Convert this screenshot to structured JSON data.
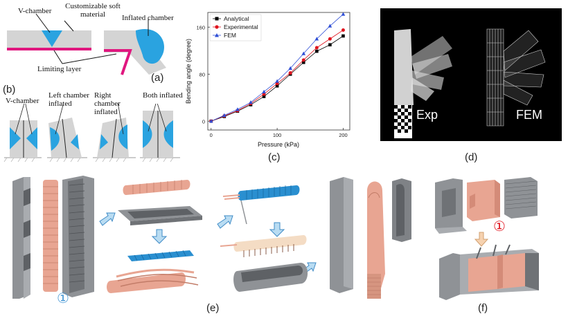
{
  "panel_a": {
    "v_chamber": "V-chamber",
    "soft_material": "Customizable soft material",
    "inflated_chamber": "Inflated chamber",
    "limiting_layer": "Limiting layer",
    "label": "(a)"
  },
  "panel_b": {
    "label": "(b)",
    "v_chamber": "V-chamber",
    "left_inflated": "Left chamber inflated",
    "right_inflated": "Right chamber inflated",
    "both_inflated": "Both inflated"
  },
  "panel_c": {
    "label": "(c)"
  },
  "panel_d": {
    "label": "(d)",
    "exp": "Exp",
    "fem": "FEM"
  },
  "panel_e": {
    "label": "(e)",
    "marker": "①"
  },
  "panel_f": {
    "label": "(f)",
    "marker": "①"
  },
  "colors": {
    "chamber_blue": "#2aa3e0",
    "limiting_pink": "#e0177f",
    "part_pink": "#e8a592",
    "part_gray": "#8f9296"
  },
  "chart_data": {
    "type": "line",
    "xlabel": "Pressure (kPa)",
    "ylabel": "Bending angle (degree)",
    "xlim": [
      -5,
      210
    ],
    "ylim": [
      -15,
      185
    ],
    "xticks": [
      0,
      100,
      200
    ],
    "yticks": [
      0,
      80,
      160
    ],
    "legend_position": "top-left",
    "series": [
      {
        "name": "Analytical",
        "color": "#000000",
        "marker": "square",
        "x": [
          0,
          20,
          40,
          60,
          80,
          100,
          120,
          140,
          160,
          180,
          200
        ],
        "y": [
          0,
          8,
          17,
          28,
          42,
          60,
          80,
          100,
          119,
          130,
          145
        ]
      },
      {
        "name": "Experimental",
        "color": "#e0141e",
        "marker": "circle",
        "x": [
          0,
          20,
          40,
          60,
          80,
          100,
          120,
          140,
          160,
          180,
          200
        ],
        "y": [
          0,
          9,
          18,
          30,
          46,
          64,
          82,
          104,
          125,
          140,
          155
        ]
      },
      {
        "name": "FEM",
        "color": "#2f4fd6",
        "marker": "triangle",
        "x": [
          0,
          20,
          40,
          60,
          80,
          100,
          120,
          140,
          160,
          180,
          200
        ],
        "y": [
          0,
          10,
          20,
          32,
          50,
          68,
          90,
          115,
          140,
          162,
          182
        ]
      }
    ]
  }
}
